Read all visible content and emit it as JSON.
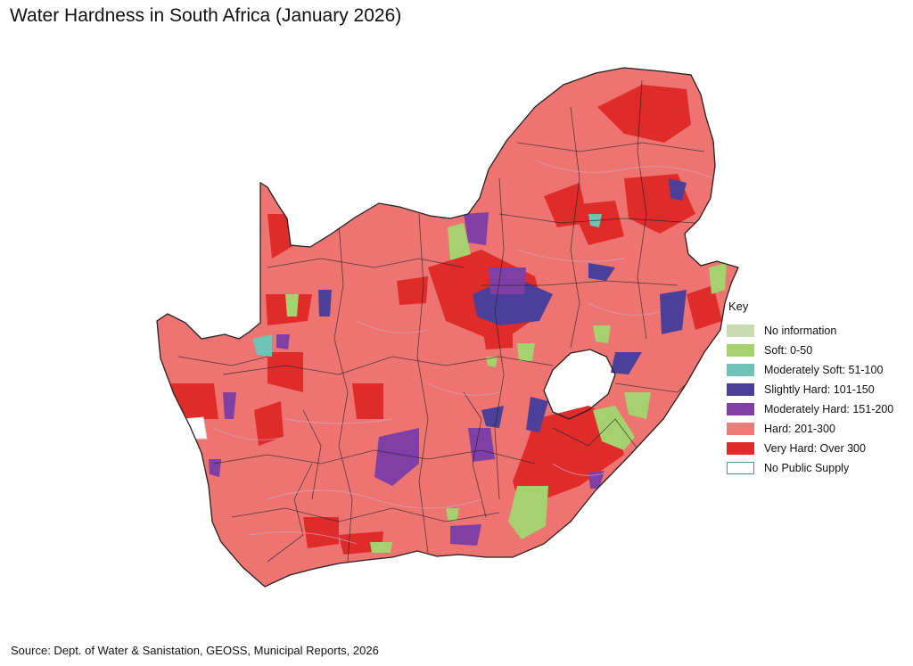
{
  "title": "Water Hardness in South Africa (January 2026)",
  "source": "Source: Dept. of Water & Sanistation, GEOSS, Municipal Reports, 2026",
  "legend": {
    "title": "Key",
    "items": [
      {
        "label": "No information",
        "color": "#c9dbb3"
      },
      {
        "label": "Soft: 0-50",
        "color": "#a5d26e"
      },
      {
        "label": "Moderately Soft: 51-100",
        "color": "#6ec3b5"
      },
      {
        "label": "Slightly Hard: 101-150",
        "color": "#4b3f9a"
      },
      {
        "label": "Moderately Hard: 151-200",
        "color": "#7f3fa5"
      },
      {
        "label": "Hard: 201-300",
        "color": "#f07b78"
      },
      {
        "label": "Very Hard: Over 300",
        "color": "#e02b2b"
      },
      {
        "label": "No Public Supply",
        "color": "#ffffff"
      }
    ]
  },
  "colors": {
    "base": "#ee7472",
    "border": "#222222",
    "rivers": "#d8a2b6",
    "no_supply_outline": "#4a9a9a"
  }
}
